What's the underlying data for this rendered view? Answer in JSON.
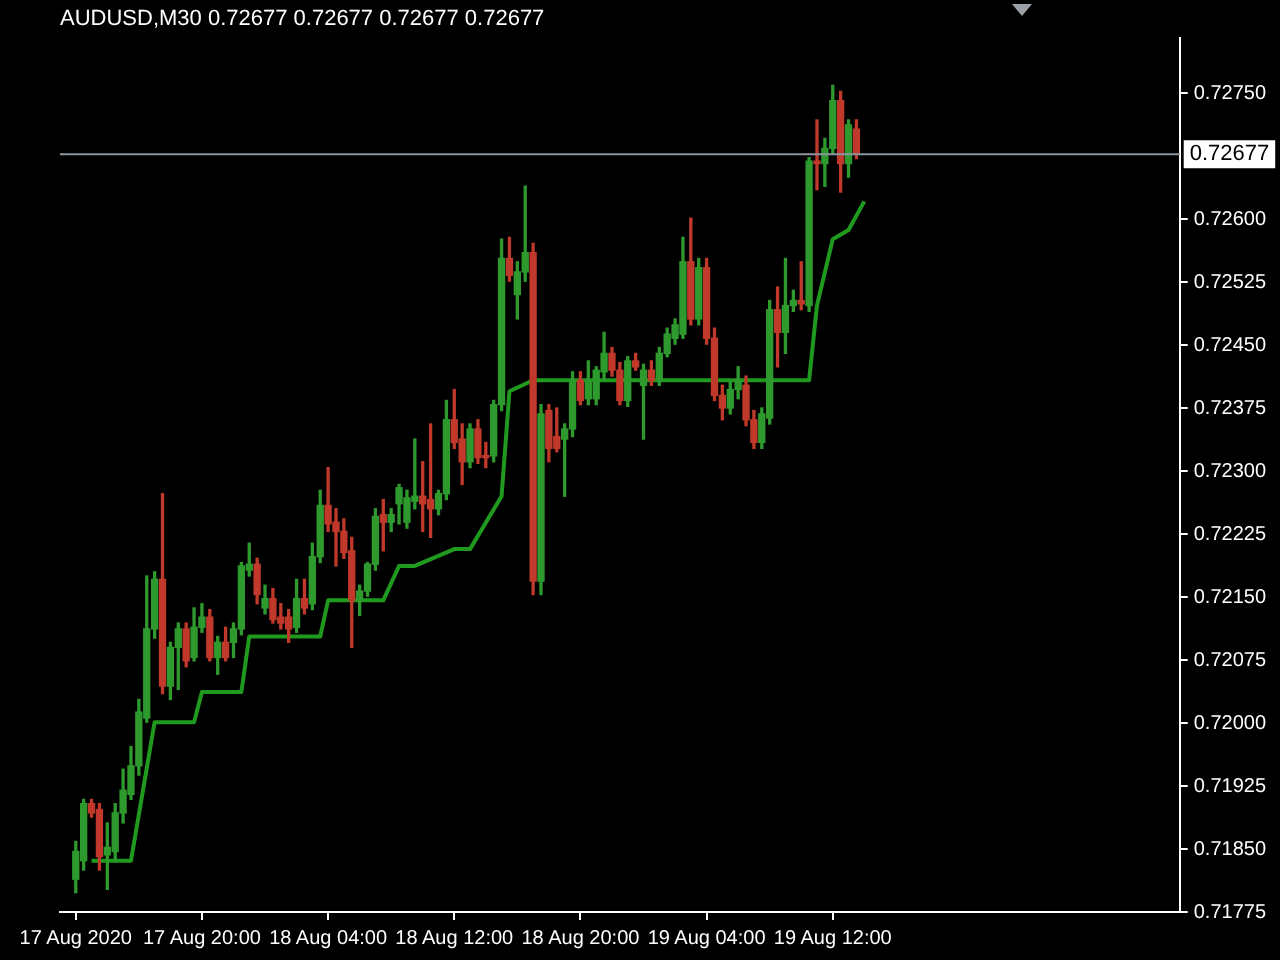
{
  "chart_data": {
    "type": "candlestick",
    "title": "AUDUSD,M30 0.72677 0.72677 0.72677 0.72677",
    "xlim": [
      "2020-08-17T11:00",
      "2020-08-20T10:00"
    ],
    "xticks": [
      {
        "value": "2020-08-17T12:00",
        "label": "17 Aug 2020"
      },
      {
        "value": "2020-08-17T20:00",
        "label": "17 Aug 20:00"
      },
      {
        "value": "2020-08-18T04:00",
        "label": "18 Aug 04:00"
      },
      {
        "value": "2020-08-18T12:00",
        "label": "18 Aug 12:00"
      },
      {
        "value": "2020-08-18T20:00",
        "label": "18 Aug 20:00"
      },
      {
        "value": "2020-08-19T04:00",
        "label": "19 Aug 04:00"
      },
      {
        "value": "2020-08-19T12:00",
        "label": "19 Aug 12:00"
      }
    ],
    "ylim": [
      0.71775,
      0.72815
    ],
    "yticks": [
      {
        "value": 0.71775,
        "label": "0.71775"
      },
      {
        "value": 0.7185,
        "label": "0.71850"
      },
      {
        "value": 0.71925,
        "label": "0.71925"
      },
      {
        "value": 0.72,
        "label": "0.72000"
      },
      {
        "value": 0.72075,
        "label": "0.72075"
      },
      {
        "value": 0.7215,
        "label": "0.72150"
      },
      {
        "value": 0.72225,
        "label": "0.72225"
      },
      {
        "value": 0.723,
        "label": "0.72300"
      },
      {
        "value": 0.72375,
        "label": "0.72375"
      },
      {
        "value": 0.7245,
        "label": "0.72450"
      },
      {
        "value": 0.72525,
        "label": "0.72525"
      },
      {
        "value": 0.726,
        "label": "0.72600"
      },
      {
        "value": 0.7275,
        "label": "0.72750"
      }
    ],
    "ref_lines": [
      {
        "axis": "y",
        "value": 0.72677,
        "label": "0.72677",
        "color": "#8c96a0"
      }
    ],
    "series": [
      {
        "type": "line",
        "color": "#1f9a1f",
        "x": [
          "2020-08-17T13:00",
          "2020-08-17T15:30",
          "2020-08-17T17:00",
          "2020-08-17T19:30",
          "2020-08-17T20:00",
          "2020-08-17T22:30",
          "2020-08-17T23:00",
          "2020-08-18T03:30",
          "2020-08-18T04:00",
          "2020-08-18T07:30",
          "2020-08-18T08:30",
          "2020-08-18T09:30",
          "2020-08-18T12:00",
          "2020-08-18T13:00",
          "2020-08-18T15:00",
          "2020-08-18T15:30",
          "2020-08-18T17:00",
          "2020-08-19T10:30",
          "2020-08-19T11:00",
          "2020-08-19T12:00",
          "2020-08-19T13:00",
          "2020-08-19T14:00"
        ],
        "values": [
          0.71836,
          0.71836,
          0.72001,
          0.72001,
          0.72037,
          0.72037,
          0.72103,
          0.72103,
          0.72146,
          0.72146,
          0.72187,
          0.72187,
          0.72207,
          0.72207,
          0.7227,
          0.72395,
          0.72408,
          0.72408,
          0.72497,
          0.72576,
          0.72587,
          0.72621
        ]
      },
      {
        "x": [
          "2020-08-17T12:00",
          "2020-08-17T12:30",
          "2020-08-17T13:00",
          "2020-08-17T13:30",
          "2020-08-17T14:00",
          "2020-08-17T14:30",
          "2020-08-17T15:00",
          "2020-08-17T15:30",
          "2020-08-17T16:00",
          "2020-08-17T16:30",
          "2020-08-17T17:00",
          "2020-08-17T17:30",
          "2020-08-17T18:00",
          "2020-08-17T18:30",
          "2020-08-17T19:00",
          "2020-08-17T19:30",
          "2020-08-17T20:00",
          "2020-08-17T20:30",
          "2020-08-17T21:00",
          "2020-08-17T21:30",
          "2020-08-17T22:00",
          "2020-08-17T22:30",
          "2020-08-17T23:00",
          "2020-08-17T23:30",
          "2020-08-18T00:00",
          "2020-08-18T00:30",
          "2020-08-18T01:00",
          "2020-08-18T01:30",
          "2020-08-18T02:00",
          "2020-08-18T02:30",
          "2020-08-18T03:00",
          "2020-08-18T03:30",
          "2020-08-18T04:00",
          "2020-08-18T04:30",
          "2020-08-18T05:00",
          "2020-08-18T05:30",
          "2020-08-18T06:00",
          "2020-08-18T06:30",
          "2020-08-18T07:00",
          "2020-08-18T07:30",
          "2020-08-18T08:00",
          "2020-08-18T08:30",
          "2020-08-18T09:00",
          "2020-08-18T09:30",
          "2020-08-18T10:00",
          "2020-08-18T10:30",
          "2020-08-18T11:00",
          "2020-08-18T11:30",
          "2020-08-18T12:00",
          "2020-08-18T12:30",
          "2020-08-18T13:00",
          "2020-08-18T13:30",
          "2020-08-18T14:00",
          "2020-08-18T14:30",
          "2020-08-18T15:00",
          "2020-08-18T15:30",
          "2020-08-18T16:00",
          "2020-08-18T16:30",
          "2020-08-18T17:00",
          "2020-08-18T17:30",
          "2020-08-18T18:00",
          "2020-08-18T18:30",
          "2020-08-18T19:00",
          "2020-08-18T19:30",
          "2020-08-18T20:00",
          "2020-08-18T20:30",
          "2020-08-18T21:00",
          "2020-08-18T21:30",
          "2020-08-18T22:00",
          "2020-08-18T22:30",
          "2020-08-18T23:00",
          "2020-08-18T23:30",
          "2020-08-19T00:00",
          "2020-08-19T00:30",
          "2020-08-19T01:00",
          "2020-08-19T01:30",
          "2020-08-19T02:00",
          "2020-08-19T02:30",
          "2020-08-19T03:00",
          "2020-08-19T03:30",
          "2020-08-19T04:00",
          "2020-08-19T04:30",
          "2020-08-19T05:00",
          "2020-08-19T05:30",
          "2020-08-19T06:00",
          "2020-08-19T06:30",
          "2020-08-19T07:00",
          "2020-08-19T07:30",
          "2020-08-19T08:00",
          "2020-08-19T08:30",
          "2020-08-19T09:00",
          "2020-08-19T09:30",
          "2020-08-19T10:00",
          "2020-08-19T10:30",
          "2020-08-19T11:00",
          "2020-08-19T11:30",
          "2020-08-19T12:00",
          "2020-08-19T12:30",
          "2020-08-19T13:00",
          "2020-08-19T13:30"
        ],
        "ohlc": [
          [
            0.71814,
            0.71859,
            0.71798,
            0.71847
          ],
          [
            0.71836,
            0.71909,
            0.71825,
            0.71904
          ],
          [
            0.71904,
            0.71909,
            0.71888,
            0.71893
          ],
          [
            0.71897,
            0.71904,
            0.71825,
            0.71841
          ],
          [
            0.71843,
            0.71881,
            0.71802,
            0.71852
          ],
          [
            0.71847,
            0.71904,
            0.71836,
            0.71893
          ],
          [
            0.71893,
            0.71945,
            0.71881,
            0.7192
          ],
          [
            0.71915,
            0.71972,
            0.71909,
            0.71949
          ],
          [
            0.71949,
            0.72028,
            0.71938,
            0.72013
          ],
          [
            0.72006,
            0.72175,
            0.72001,
            0.72112
          ],
          [
            0.72112,
            0.7218,
            0.72101,
            0.72171
          ],
          [
            0.72171,
            0.72273,
            0.72035,
            0.72044
          ],
          [
            0.72044,
            0.72096,
            0.72028,
            0.7209
          ],
          [
            0.7209,
            0.72119,
            0.7204,
            0.72112
          ],
          [
            0.72112,
            0.72119,
            0.72067,
            0.72074
          ],
          [
            0.72078,
            0.72137,
            0.72074,
            0.72114
          ],
          [
            0.72114,
            0.72142,
            0.72108,
            0.72126
          ],
          [
            0.72126,
            0.72135,
            0.72074,
            0.72078
          ],
          [
            0.72078,
            0.72103,
            0.72058,
            0.72096
          ],
          [
            0.72096,
            0.72114,
            0.72074,
            0.72078
          ],
          [
            0.72096,
            0.72119,
            0.72078,
            0.72112
          ],
          [
            0.72112,
            0.72191,
            0.72105,
            0.72187
          ],
          [
            0.72182,
            0.72214,
            0.72175,
            0.72189
          ],
          [
            0.72189,
            0.72196,
            0.72142,
            0.72153
          ],
          [
            0.72137,
            0.72164,
            0.7213,
            0.72148
          ],
          [
            0.72148,
            0.7216,
            0.72119,
            0.72123
          ],
          [
            0.72126,
            0.72142,
            0.72112,
            0.72119
          ],
          [
            0.72126,
            0.72135,
            0.72096,
            0.72112
          ],
          [
            0.72114,
            0.72171,
            0.72108,
            0.72148
          ],
          [
            0.72148,
            0.72171,
            0.7213,
            0.72137
          ],
          [
            0.72142,
            0.72214,
            0.72135,
            0.72198
          ],
          [
            0.72198,
            0.72277,
            0.72191,
            0.72259
          ],
          [
            0.72259,
            0.72304,
            0.72228,
            0.72237
          ],
          [
            0.72239,
            0.72255,
            0.72187,
            0.72228
          ],
          [
            0.72228,
            0.72243,
            0.72196,
            0.72203
          ],
          [
            0.72205,
            0.72221,
            0.7209,
            0.72146
          ],
          [
            0.72146,
            0.72164,
            0.72128,
            0.72157
          ],
          [
            0.72157,
            0.72191,
            0.72151,
            0.72189
          ],
          [
            0.72189,
            0.72255,
            0.72182,
            0.72246
          ],
          [
            0.72248,
            0.72266,
            0.72205,
            0.72239
          ],
          [
            0.72239,
            0.72255,
            0.72228,
            0.72248
          ],
          [
            0.72261,
            0.72284,
            0.72237,
            0.7228
          ],
          [
            0.72239,
            0.72277,
            0.72232,
            0.72268
          ],
          [
            0.72264,
            0.72338,
            0.72255,
            0.7227
          ],
          [
            0.7227,
            0.72311,
            0.72228,
            0.72261
          ],
          [
            0.72266,
            0.72356,
            0.72221,
            0.72255
          ],
          [
            0.72255,
            0.72277,
            0.72248,
            0.72273
          ],
          [
            0.72273,
            0.72384,
            0.72266,
            0.72361
          ],
          [
            0.72361,
            0.72397,
            0.72327,
            0.72334
          ],
          [
            0.72338,
            0.72356,
            0.72284,
            0.72311
          ],
          [
            0.72311,
            0.72356,
            0.72304,
            0.7235
          ],
          [
            0.7235,
            0.72361,
            0.72309,
            0.72316
          ],
          [
            0.72318,
            0.72334,
            0.72304,
            0.72316
          ],
          [
            0.72318,
            0.72384,
            0.72311,
            0.72379
          ],
          [
            0.72379,
            0.72576,
            0.72372,
            0.72553
          ],
          [
            0.72553,
            0.72578,
            0.72526,
            0.72533
          ],
          [
            0.7251,
            0.72549,
            0.72481,
            0.72537
          ],
          [
            0.72537,
            0.72639,
            0.72526,
            0.7256
          ],
          [
            0.7256,
            0.72571,
            0.72153,
            0.72169
          ],
          [
            0.72169,
            0.72379,
            0.72153,
            0.72368
          ],
          [
            0.72372,
            0.72379,
            0.72311,
            0.72327
          ],
          [
            0.72341,
            0.72375,
            0.72323,
            0.72327
          ],
          [
            0.72338,
            0.72356,
            0.7227,
            0.7235
          ],
          [
            0.7235,
            0.72418,
            0.72341,
            0.72408
          ],
          [
            0.72408,
            0.72418,
            0.72379,
            0.72384
          ],
          [
            0.72386,
            0.72431,
            0.72379,
            0.72406
          ],
          [
            0.72386,
            0.72424,
            0.72379,
            0.7242
          ],
          [
            0.72418,
            0.72465,
            0.72408,
            0.7244
          ],
          [
            0.7244,
            0.72447,
            0.72413,
            0.7242
          ],
          [
            0.7242,
            0.72429,
            0.72379,
            0.72384
          ],
          [
            0.72384,
            0.72436,
            0.72377,
            0.72431
          ],
          [
            0.72431,
            0.7244,
            0.7242,
            0.72424
          ],
          [
            0.72402,
            0.72427,
            0.72338,
            0.7242
          ],
          [
            0.7242,
            0.72431,
            0.72402,
            0.72408
          ],
          [
            0.72408,
            0.72447,
            0.72402,
            0.7244
          ],
          [
            0.7244,
            0.7247,
            0.72436,
            0.72463
          ],
          [
            0.72458,
            0.72481,
            0.72451,
            0.72474
          ],
          [
            0.72463,
            0.72578,
            0.72458,
            0.72549
          ],
          [
            0.72549,
            0.72601,
            0.72474,
            0.72481
          ],
          [
            0.72481,
            0.72553,
            0.72474,
            0.72542
          ],
          [
            0.72542,
            0.72553,
            0.72451,
            0.72458
          ],
          [
            0.72458,
            0.7247,
            0.72384,
            0.7239
          ],
          [
            0.7239,
            0.72402,
            0.72361,
            0.72375
          ],
          [
            0.72375,
            0.72406,
            0.72368,
            0.72397
          ],
          [
            0.72397,
            0.72424,
            0.72386,
            0.72408
          ],
          [
            0.72402,
            0.72413,
            0.72354,
            0.72361
          ],
          [
            0.72361,
            0.72372,
            0.72327,
            0.72334
          ],
          [
            0.72334,
            0.72375,
            0.72327,
            0.72368
          ],
          [
            0.72363,
            0.72503,
            0.72356,
            0.72492
          ],
          [
            0.72492,
            0.72519,
            0.72424,
            0.72465
          ],
          [
            0.72465,
            0.72553,
            0.7244,
            0.72497
          ],
          [
            0.72497,
            0.72515,
            0.7249,
            0.72503
          ],
          [
            0.72503,
            0.72549,
            0.72492,
            0.72499
          ],
          [
            0.72497,
            0.72673,
            0.7249,
            0.72669
          ],
          [
            0.72669,
            0.72718,
            0.72635,
            0.72666
          ],
          [
            0.72666,
            0.72696,
            0.72639,
            0.72684
          ],
          [
            0.72684,
            0.72759,
            0.72678,
            0.72741
          ],
          [
            0.72741,
            0.72752,
            0.72632,
            0.72666
          ],
          [
            0.72666,
            0.72718,
            0.7265,
            0.72712
          ],
          [
            0.72707,
            0.72718,
            0.72672,
            0.72677
          ]
        ],
        "colors": [
          "#2e9a2e",
          "#2e9a2e",
          "#c0392b",
          "#c0392b",
          "#2e9a2e",
          "#2e9a2e",
          "#2e9a2e",
          "#2e9a2e",
          "#2e9a2e",
          "#2e9a2e",
          "#2e9a2e",
          "#c0392b",
          "#2e9a2e",
          "#2e9a2e",
          "#c0392b",
          "#2e9a2e",
          "#2e9a2e",
          "#c0392b",
          "#2e9a2e",
          "#c0392b",
          "#2e9a2e",
          "#2e9a2e",
          "#2e9a2e",
          "#c0392b",
          "#2e9a2e",
          "#c0392b",
          "#c0392b",
          "#c0392b",
          "#2e9a2e",
          "#c0392b",
          "#2e9a2e",
          "#2e9a2e",
          "#c0392b",
          "#c0392b",
          "#c0392b",
          "#c0392b",
          "#2e9a2e",
          "#2e9a2e",
          "#2e9a2e",
          "#c0392b",
          "#2e9a2e",
          "#2e9a2e",
          "#2e9a2e",
          "#2e9a2e",
          "#c0392b",
          "#c0392b",
          "#2e9a2e",
          "#2e9a2e",
          "#c0392b",
          "#c0392b",
          "#2e9a2e",
          "#c0392b",
          "#c0392b",
          "#2e9a2e",
          "#2e9a2e",
          "#c0392b",
          "#2e9a2e",
          "#2e9a2e",
          "#c0392b",
          "#2e9a2e",
          "#c0392b",
          "#c0392b",
          "#2e9a2e",
          "#2e9a2e",
          "#c0392b",
          "#2e9a2e",
          "#2e9a2e",
          "#2e9a2e",
          "#c0392b",
          "#c0392b",
          "#2e9a2e",
          "#c0392b",
          "#2e9a2e",
          "#c0392b",
          "#2e9a2e",
          "#2e9a2e",
          "#2e9a2e",
          "#2e9a2e",
          "#c0392b",
          "#2e9a2e",
          "#c0392b",
          "#c0392b",
          "#c0392b",
          "#2e9a2e",
          "#2e9a2e",
          "#c0392b",
          "#c0392b",
          "#2e9a2e",
          "#2e9a2e",
          "#c0392b",
          "#2e9a2e",
          "#2e9a2e",
          "#c0392b",
          "#2e9a2e",
          "#c0392b",
          "#2e9a2e",
          "#2e9a2e",
          "#c0392b",
          "#2e9a2e",
          "#c0392b"
        ]
      }
    ]
  }
}
